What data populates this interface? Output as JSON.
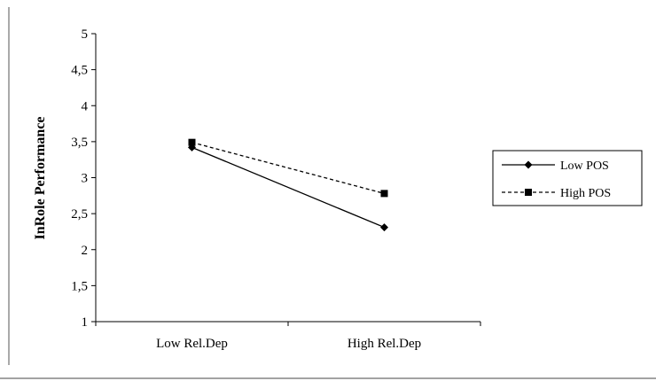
{
  "chart_data": {
    "type": "line",
    "title": "",
    "xlabel": "",
    "ylabel": "InRole Performance",
    "categories": [
      "Low Rel.Dep",
      "High Rel.Dep"
    ],
    "ylim": [
      1,
      5
    ],
    "yticks": [
      "1",
      "1,5",
      "2",
      "2,5",
      "3",
      "3,5",
      "4",
      "4,5",
      "5"
    ],
    "grid": false,
    "legend_position": "right",
    "series": [
      {
        "name": "Low POS",
        "values": [
          3.42,
          2.31
        ],
        "marker": "diamond",
        "line_style": "solid",
        "color": "#000000"
      },
      {
        "name": "High POS",
        "values": [
          3.49,
          2.78
        ],
        "marker": "square",
        "line_style": "dashed",
        "color": "#000000"
      }
    ]
  }
}
